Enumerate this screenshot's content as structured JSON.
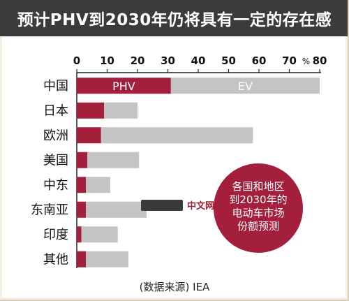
{
  "title": "预计PHV到2030年仍将具有一定的存在感",
  "source": "(数据来源) IEA",
  "watermark": {
    "brand": "中文网"
  },
  "colors": {
    "phv": "#a31f3c",
    "ev": "#c4c4c4",
    "title_bg": "#3b3b3b",
    "circle": "#a31f3c"
  },
  "callout": {
    "lines": [
      "各国和地区",
      "到2030年的",
      "电动车市场",
      "份额预测"
    ]
  },
  "chart_data": {
    "type": "bar",
    "orientation": "horizontal",
    "stacked": true,
    "title": "预计PHV到2030年仍将具有一定的存在感",
    "categories": [
      "中国",
      "日本",
      "欧洲",
      "美国",
      "中东",
      "东南亚",
      "印度",
      "其他"
    ],
    "series": [
      {
        "name": "PHV",
        "values": [
          31,
          9,
          8,
          3.5,
          3,
          3,
          1.5,
          3
        ]
      },
      {
        "name": "EV",
        "values": [
          49,
          11,
          50,
          17,
          8,
          20,
          12,
          14
        ]
      }
    ],
    "x_ticks": [
      "0",
      "10",
      "20",
      "30",
      "40",
      "50",
      "60",
      "70",
      "80"
    ],
    "x_unit": "%",
    "xlim": [
      0,
      80
    ],
    "grid": false,
    "bar_labels": {
      "phv": "PHV",
      "ev": "EV"
    }
  }
}
